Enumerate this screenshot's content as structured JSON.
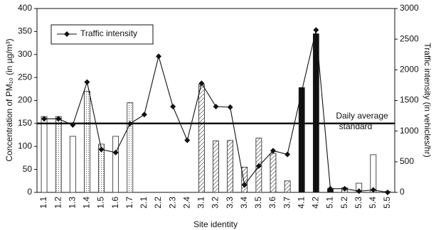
{
  "chart_data": {
    "type": "bar-line",
    "categories": [
      "1.1",
      "1.2",
      "1.3",
      "1.4",
      "1.5",
      "1.6",
      "1.7",
      "2.1",
      "2.2",
      "2.3",
      "2.4",
      "3.1",
      "3.2",
      "3.3",
      "3.4",
      "3.5",
      "3.6",
      "3.7",
      "4.1",
      "4.2",
      "5.1",
      "5.2",
      "5.3",
      "5.4",
      "5.5"
    ],
    "xlabel": "Site identity",
    "ylabel": "Concentration of PM₁₀ (in µg/m³)",
    "y2label": "Traffic intensity (in vehicles/hr)",
    "ylim": [
      0,
      400
    ],
    "yticks": [
      0,
      50,
      100,
      150,
      200,
      250,
      300,
      350,
      400
    ],
    "y2lim": [
      0,
      3000
    ],
    "y2ticks": [
      0,
      500,
      1000,
      1500,
      2000,
      2500,
      3000
    ],
    "series": [
      {
        "type": "bar",
        "values": [
          165,
          165,
          122,
          220,
          105,
          122,
          195,
          null,
          null,
          null,
          null,
          235,
          112,
          113,
          55,
          118,
          85,
          25,
          228,
          345,
          8,
          10,
          20,
          82,
          2
        ],
        "fills": [
          "white",
          "dotted",
          "white",
          "dotted",
          "dotted",
          "white",
          "dotted",
          null,
          null,
          null,
          null,
          "hatched",
          "hatched",
          "hatched",
          "hatched",
          "hatched",
          "hatched",
          "hatched",
          "black",
          "black",
          "black",
          "dotted",
          "white",
          "white",
          "white"
        ]
      },
      {
        "type": "line",
        "name": "Traffic intensity",
        "axis": "y2",
        "color": "#111",
        "values": [
          1200,
          1200,
          1100,
          1800,
          700,
          650,
          1120,
          1270,
          2220,
          1400,
          850,
          1780,
          1400,
          1390,
          120,
          430,
          680,
          620,
          1650,
          2650,
          60,
          60,
          20,
          40,
          0
        ]
      }
    ],
    "reference_line": {
      "value": 150,
      "label": [
        "Daily average",
        "standard"
      ]
    },
    "legend": "top-left"
  }
}
